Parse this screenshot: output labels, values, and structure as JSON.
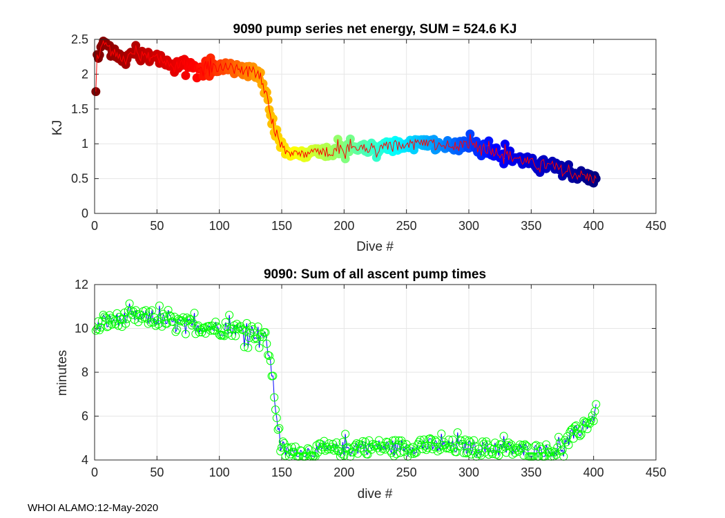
{
  "footer": "WHOI ALAMO:12-May-2020",
  "chart_data": [
    {
      "type": "scatter",
      "title": "9090 pump series net energy, SUM = 524.6 KJ",
      "xlabel": "Dive #",
      "ylabel": "KJ",
      "xlim": [
        0,
        450
      ],
      "ylim": [
        0,
        2.5
      ],
      "xticks": [
        0,
        50,
        100,
        150,
        200,
        250,
        300,
        350,
        400,
        450
      ],
      "yticks": [
        0,
        0.5,
        1,
        1.5,
        2,
        2.5
      ],
      "ytick_labels": [
        "0",
        "0.5",
        "1",
        "1.5",
        "2",
        "2.5"
      ],
      "grid": true,
      "marker": "filled circle colored by dive number (jet colormap)",
      "line_color": "#ff0000",
      "colormap": [
        "#800000",
        "#ff0000",
        "#ffff00",
        "#00ffff",
        "#0000ff",
        "#000080"
      ],
      "anchors_x": [
        1,
        2,
        5,
        7,
        10,
        13,
        16,
        20,
        25,
        30,
        40,
        50,
        60,
        70,
        80,
        90,
        100,
        110,
        120,
        125,
        130,
        133,
        136,
        139,
        141,
        143,
        145,
        147,
        150,
        153,
        156,
        160,
        165,
        170,
        180,
        190,
        200,
        210,
        220,
        230,
        240,
        250,
        260,
        270,
        280,
        290,
        300,
        310,
        320,
        330,
        340,
        350,
        360,
        370,
        380,
        390,
        395,
        400,
        402
      ],
      "anchors_y": [
        1.75,
        2.28,
        2.35,
        2.42,
        2.38,
        2.33,
        2.3,
        2.27,
        2.25,
        2.27,
        2.25,
        2.22,
        2.18,
        2.15,
        2.12,
        2.12,
        2.1,
        2.08,
        2.05,
        2.03,
        2.02,
        1.95,
        1.8,
        1.6,
        1.42,
        1.3,
        1.18,
        1.07,
        0.98,
        0.93,
        0.88,
        0.86,
        0.86,
        0.87,
        0.88,
        0.9,
        0.92,
        0.93,
        0.93,
        0.94,
        0.97,
        0.98,
        0.99,
        0.99,
        0.98,
        0.98,
        0.97,
        0.95,
        0.9,
        0.85,
        0.78,
        0.72,
        0.7,
        0.65,
        0.58,
        0.55,
        0.52,
        0.5,
        0.49
      ],
      "noise_amplitude": 0.08,
      "n_dives": 402
    },
    {
      "type": "line",
      "title": "9090: Sum of all ascent pump times",
      "xlabel": "dive #",
      "ylabel": "minutes",
      "xlim": [
        0,
        450
      ],
      "ylim": [
        4,
        12
      ],
      "xticks": [
        0,
        50,
        100,
        150,
        200,
        250,
        300,
        350,
        400,
        450
      ],
      "yticks": [
        4,
        6,
        8,
        10,
        12
      ],
      "ytick_labels": [
        "4",
        "6",
        "8",
        "10",
        "12"
      ],
      "grid": true,
      "marker": "open circle",
      "marker_color": "#00ff00",
      "line_color": "#0000ff",
      "anchors_x": [
        1,
        5,
        10,
        20,
        30,
        40,
        50,
        60,
        70,
        80,
        90,
        100,
        110,
        120,
        130,
        134,
        137,
        140,
        142,
        144,
        146,
        148,
        150,
        153,
        156,
        160,
        170,
        180,
        190,
        200,
        210,
        220,
        230,
        240,
        250,
        260,
        270,
        280,
        290,
        300,
        310,
        320,
        330,
        340,
        350,
        360,
        365,
        370,
        375,
        380,
        385,
        390,
        395,
        400,
        402
      ],
      "anchors_y": [
        9.9,
        10.2,
        10.3,
        10.4,
        10.5,
        10.5,
        10.4,
        10.3,
        10.2,
        10.1,
        10.1,
        10.0,
        10.0,
        9.9,
        9.8,
        9.75,
        9.5,
        8.8,
        8.0,
        7.0,
        6.0,
        5.2,
        4.6,
        4.4,
        4.3,
        4.3,
        4.35,
        4.4,
        4.45,
        4.5,
        4.6,
        4.6,
        4.6,
        4.6,
        4.6,
        4.65,
        4.65,
        4.6,
        4.6,
        4.6,
        4.55,
        4.5,
        4.5,
        4.45,
        4.4,
        4.4,
        4.4,
        4.45,
        4.6,
        4.9,
        5.2,
        5.4,
        5.7,
        6.0,
        6.2
      ],
      "noise_amplitude": 0.35,
      "n_dives": 402
    }
  ]
}
